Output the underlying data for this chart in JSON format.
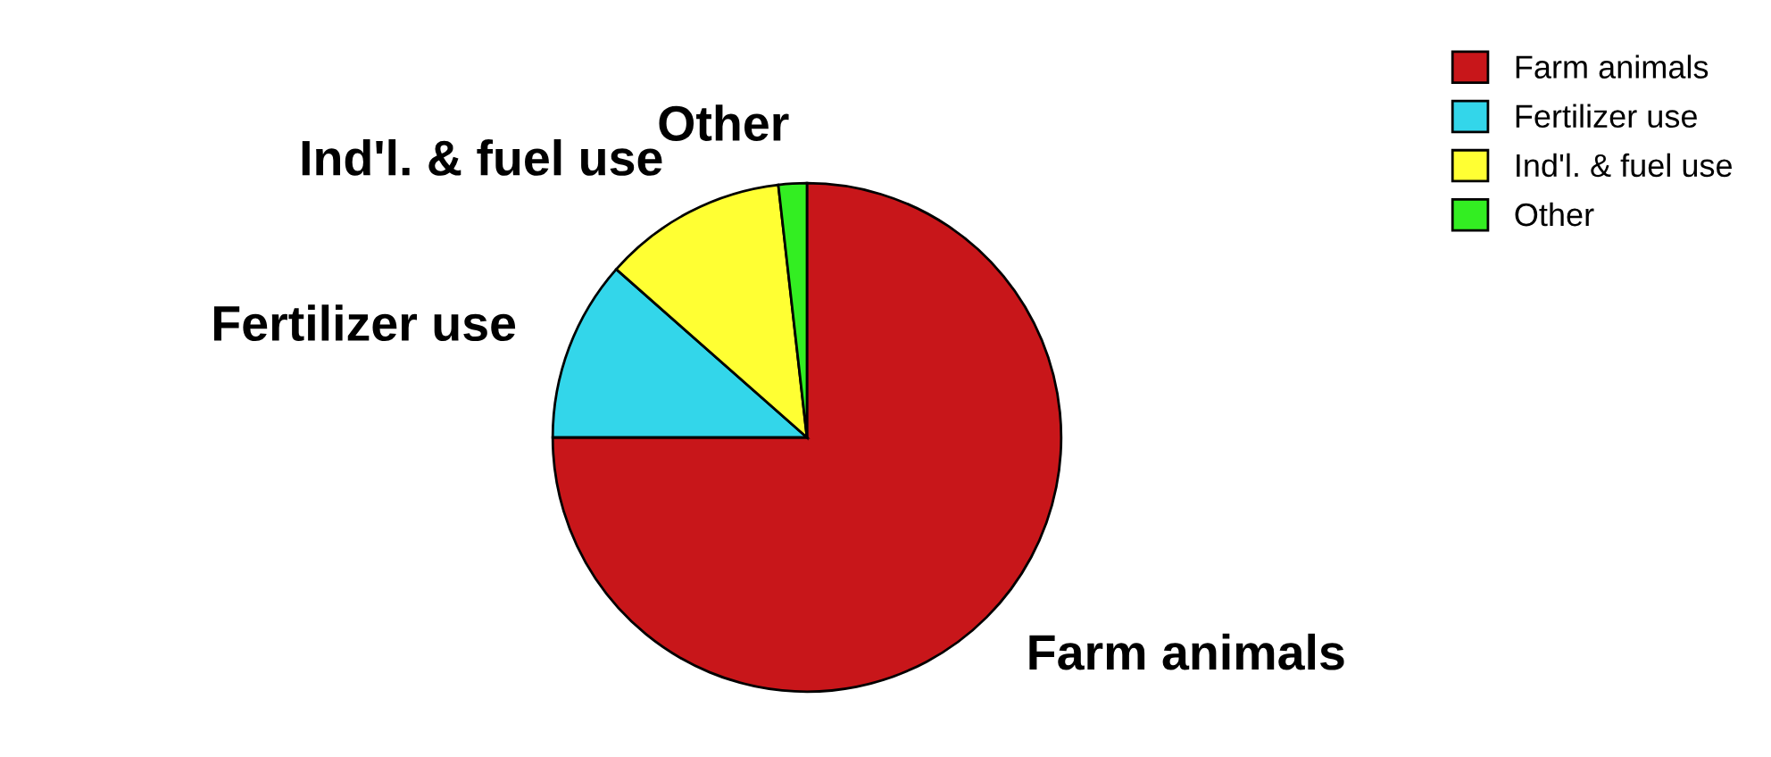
{
  "chart_data": {
    "type": "pie",
    "categories": [
      "Farm animals",
      "Fertilizer use",
      "Ind'l. & fuel use",
      "Other"
    ],
    "values": [
      75,
      11.5,
      11.7,
      1.8
    ],
    "colors": [
      "#c8161a",
      "#33d6ea",
      "#ffff33",
      "#33ee22"
    ],
    "legend": "top right"
  }
}
